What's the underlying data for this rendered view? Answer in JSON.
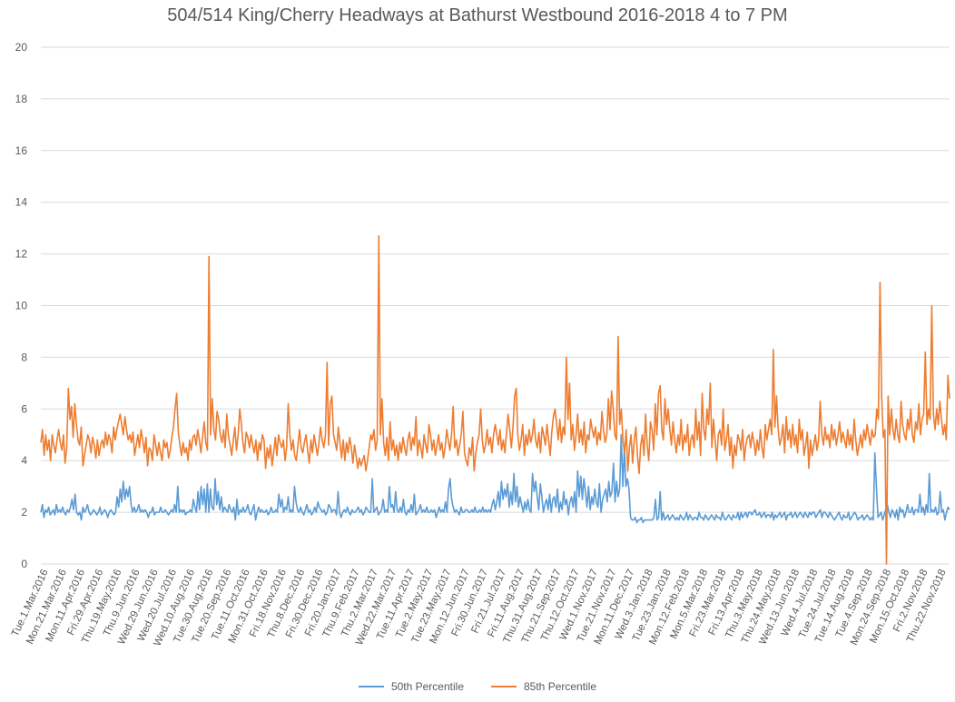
{
  "chart_data": {
    "type": "line",
    "title": "504/514 King/Cherry Headways at Bathurst Westbound 2016-2018 4 to 7 PM",
    "xlabel": "",
    "ylabel": "",
    "ylim": [
      0,
      20
    ],
    "yticks": [
      0,
      2,
      4,
      6,
      8,
      10,
      12,
      14,
      16,
      18,
      20
    ],
    "grid": true,
    "legend_position": "bottom",
    "x_start": "Tue.1.Mar.2016",
    "x_end": "Fri.30.Nov.2018",
    "x_tick_labels": [
      "Tue.1.Mar.2016",
      "Mon.21.Mar.2016",
      "Mon.11.Apr.2016",
      "Fri.29.Apr.2016",
      "Thu.19.May.2016",
      "Thu.9.Jun.2016",
      "Wed.29.Jun.2016",
      "Wed.20.Jul.2016",
      "Wed.10.Aug.2016",
      "Tue.30.Aug.2016",
      "Tue.20.Sep.2016",
      "Tue.11.Oct.2016",
      "Mon.31.Oct.2016",
      "Fri.18.Nov.2016",
      "Thu.8.Dec.2016",
      "Fri.30.Dec.2016",
      "Fri.20.Jan.2017",
      "Thu.9.Feb.2017",
      "Thu.2.Mar.2017",
      "Wed.22.Mar.2017",
      "Tue.11.Apr.2017",
      "Tue.2.May.2017",
      "Tue.23.May.2017",
      "Mon.12.Jun.2017",
      "Fri.30.Jun.2017",
      "Fri.21.Jul.2017",
      "Fri.11.Aug.2017",
      "Thu.31.Aug.2017",
      "Thu.21.Sep.2017",
      "Thu.12.Oct.2017",
      "Wed.1.Nov.2017",
      "Tue.21.Nov.2017",
      "Mon.11.Dec.2017",
      "Wed.3.Jan.2018",
      "Tue.23.Jan.2018",
      "Mon.12.Feb.2018",
      "Mon.5.Mar.2018",
      "Fri.23.Mar.2018",
      "Fri.13.Apr.2018",
      "Thu.3.May.2018",
      "Thu.24.May.2018",
      "Wed.13.Jun.2018",
      "Wed.4.Jul.2018",
      "Tue.24.Jul.2018",
      "Tue.14.Aug.2018",
      "Tue.4.Sep.2018",
      "Mon.24.Sep.2018",
      "Mon.15.Oct.2018",
      "Fri.2.Nov.2018",
      "Thu.22.Nov.2018"
    ],
    "series": [
      {
        "name": "50th Percentile",
        "color": "#5b9bd5",
        "values": [
          2.0,
          2.3,
          1.8,
          2.1,
          2.0,
          2.2,
          1.9,
          2.0,
          2.1,
          1.9,
          2.3,
          2.0,
          2.1,
          2.0,
          2.2,
          2.0,
          1.9,
          2.1,
          2.0,
          2.2,
          2.5,
          2.1,
          2.7,
          2.0,
          1.9,
          2.0,
          1.7,
          2.2,
          2.0,
          2.1,
          2.3,
          2.0,
          1.9,
          2.0,
          2.1,
          2.0,
          1.9,
          2.0,
          2.2,
          1.9,
          2.0,
          2.1,
          2.0,
          1.8,
          2.0,
          2.1,
          2.0,
          1.9,
          2.0,
          2.6,
          2.2,
          2.9,
          2.4,
          3.2,
          2.5,
          2.9,
          2.6,
          3.0,
          2.3,
          2.0,
          2.2,
          2.0,
          2.1,
          2.3,
          2.0,
          2.1,
          2.0,
          2.1,
          2.0,
          1.8,
          2.0,
          2.0,
          2.2,
          1.9,
          2.0,
          2.0,
          2.0,
          2.2,
          2.0,
          2.0,
          2.1,
          2.0,
          1.9,
          2.0,
          2.1,
          2.0,
          2.3,
          2.0,
          3.0,
          2.0,
          2.1,
          2.0,
          2.1,
          1.9,
          2.0,
          2.0,
          2.1,
          2.0,
          2.5,
          2.2,
          2.0,
          2.8,
          2.1,
          3.0,
          2.3,
          2.9,
          2.0,
          3.1,
          2.0,
          2.9,
          2.2,
          2.1,
          3.3,
          2.3,
          2.8,
          2.1,
          2.6,
          2.0,
          2.2,
          2.1,
          2.0,
          2.3,
          2.1,
          2.0,
          2.2,
          1.7,
          2.5,
          1.9,
          2.1,
          2.0,
          2.2,
          2.0,
          2.1,
          2.3,
          2.0,
          1.9,
          2.1,
          2.3,
          1.7,
          2.0,
          2.2,
          2.0,
          2.1,
          2.0,
          2.0,
          2.1,
          1.9,
          2.0,
          2.2,
          2.0,
          2.0,
          2.1,
          2.0,
          2.7,
          2.2,
          2.5,
          2.0,
          2.2,
          2.1,
          2.6,
          2.0,
          2.1,
          2.0,
          3.0,
          2.4,
          2.1,
          2.0,
          2.2,
          2.0,
          1.9,
          2.1,
          2.3,
          2.0,
          2.1,
          1.9,
          2.0,
          2.2,
          2.0,
          2.4,
          2.2,
          2.1,
          2.0,
          2.1,
          1.9,
          2.0,
          2.3,
          2.2,
          2.0,
          2.1,
          2.1,
          1.9,
          2.8,
          2.0,
          1.8,
          2.0,
          2.1,
          2.0,
          2.2,
          2.0,
          1.9,
          2.1,
          2.0,
          2.0,
          2.1,
          2.2,
          2.0,
          2.1,
          1.9,
          2.0,
          2.2,
          2.1,
          2.0,
          2.0,
          3.3,
          2.0,
          2.1,
          2.2,
          1.9,
          2.0,
          2.1,
          2.5,
          2.0,
          2.1,
          2.0,
          3.0,
          2.2,
          2.3,
          2.0,
          2.8,
          2.1,
          2.0,
          2.2,
          2.0,
          2.5,
          2.0,
          1.9,
          2.1,
          2.0,
          2.3,
          2.0,
          2.7,
          1.9,
          2.0,
          2.1,
          2.3,
          2.0,
          2.1,
          2.0,
          2.2,
          2.0,
          2.0,
          2.1,
          2.0,
          2.1,
          1.8,
          2.0,
          2.2,
          2.0,
          2.1,
          2.0,
          2.4,
          2.0,
          2.9,
          3.3,
          2.5,
          2.2,
          2.0,
          2.1,
          2.0,
          1.9,
          2.2,
          2.0,
          2.0,
          2.1,
          2.1,
          2.0,
          2.0,
          2.1,
          2.0,
          2.2,
          2.0,
          2.0,
          2.1,
          2.0,
          2.2,
          2.0,
          2.1,
          2.0,
          2.1,
          2.0,
          2.3,
          2.5,
          2.1,
          2.4,
          2.8,
          2.2,
          3.2,
          2.5,
          2.9,
          2.6,
          3.1,
          2.2,
          2.8,
          2.3,
          3.5,
          2.4,
          3.0,
          2.2,
          2.6,
          2.3,
          2.0,
          2.4,
          2.1,
          2.5,
          2.1,
          2.0,
          3.5,
          2.8,
          3.2,
          2.6,
          2.1,
          3.1,
          2.6,
          2.0,
          2.3,
          2.5,
          2.1,
          2.7,
          2.0,
          2.5,
          2.6,
          2.2,
          2.9,
          2.0,
          2.4,
          2.1,
          2.8,
          2.3,
          2.5,
          1.9,
          2.4,
          2.6,
          2.2,
          2.8,
          2.0,
          3.6,
          2.6,
          3.4,
          2.5,
          3.3,
          2.8,
          2.2,
          3.0,
          2.1,
          2.6,
          2.3,
          2.9,
          2.4,
          2.2,
          3.1,
          2.0,
          2.5,
          2.7,
          2.9,
          2.4,
          3.2,
          2.6,
          2.8,
          3.9,
          2.4,
          3.2,
          2.6,
          2.9,
          5.0,
          3.0,
          4.5,
          3.0,
          3.3,
          2.9,
          1.8,
          1.7,
          1.7,
          1.8,
          1.6,
          1.7,
          1.7,
          1.8,
          1.6,
          1.7,
          1.7,
          1.7,
          1.7,
          1.7,
          1.7,
          1.8,
          2.5,
          1.7,
          1.8,
          2.8,
          1.7,
          2.0,
          1.7,
          1.8,
          1.9,
          1.7,
          1.8,
          1.9,
          1.8,
          1.7,
          1.8,
          1.7,
          1.9,
          1.8,
          1.7,
          1.8,
          2.0,
          1.7,
          1.9,
          1.8,
          1.7,
          1.8,
          1.8,
          1.7,
          2.0,
          1.8,
          1.8,
          1.7,
          1.9,
          1.8,
          1.7,
          1.8,
          1.9,
          1.8,
          1.7,
          1.9,
          1.8,
          1.8,
          1.7,
          2.0,
          1.8,
          1.7,
          1.8,
          1.9,
          1.8,
          1.7,
          1.9,
          1.8,
          1.8,
          2.0,
          1.7,
          2.0,
          1.8,
          1.9,
          2.0,
          1.8,
          2.0,
          2.0,
          1.9,
          2.0,
          2.1,
          1.9,
          1.9,
          2.0,
          1.8,
          1.9,
          2.0,
          1.8,
          1.9,
          1.9,
          1.8,
          2.0,
          1.7,
          1.9,
          1.8,
          1.9,
          2.0,
          1.8,
          1.9,
          2.0,
          1.7,
          1.9,
          1.9,
          2.0,
          1.8,
          1.9,
          2.0,
          1.8,
          1.9,
          2.0,
          1.9,
          1.8,
          2.0,
          1.9,
          1.8,
          2.0,
          1.9,
          2.0,
          2.0,
          1.8,
          1.9,
          2.0,
          2.1,
          1.8,
          2.0,
          2.0,
          1.9,
          1.8,
          2.0,
          1.9,
          1.8,
          1.7,
          1.8,
          1.9,
          2.0,
          1.8,
          1.7,
          1.9,
          1.8,
          1.8,
          2.0,
          1.7,
          1.8,
          1.9,
          2.0,
          1.9,
          1.7,
          1.8,
          1.8,
          1.9,
          1.7,
          1.8,
          1.9,
          1.8,
          1.7,
          1.8,
          1.7,
          4.3,
          3.0,
          1.8,
          1.9,
          2.0,
          1.7,
          1.9,
          2.1,
          2.3,
          2.0,
          1.8,
          2.1,
          2.0,
          1.8,
          2.1,
          1.7,
          2.2,
          2.0,
          2.1,
          1.8,
          2.0,
          2.3,
          2.0,
          2.0,
          2.2,
          1.9,
          2.1,
          2.1,
          2.0,
          2.7,
          2.0,
          2.2,
          1.9,
          2.3,
          2.0,
          3.5,
          2.0,
          2.1,
          2.0,
          2.2,
          1.9,
          2.0,
          2.8,
          2.0,
          2.1,
          1.7,
          2.0,
          2.2,
          2.1
        ]
      },
      {
        "name": "85th Percentile",
        "color": "#ed7d31",
        "values": [
          4.7,
          5.2,
          4.2,
          5.0,
          4.4,
          4.8,
          4.0,
          5.0,
          4.6,
          4.3,
          4.8,
          5.2,
          4.7,
          4.4,
          5.0,
          3.9,
          4.5,
          6.8,
          5.6,
          6.1,
          4.9,
          6.2,
          5.4,
          4.8,
          4.6,
          5.3,
          3.8,
          4.2,
          4.6,
          5.0,
          4.8,
          4.3,
          4.9,
          4.6,
          4.1,
          4.8,
          4.2,
          4.6,
          4.8,
          4.5,
          5.1,
          4.6,
          5.0,
          4.8,
          4.3,
          5.3,
          4.8,
          5.2,
          5.5,
          5.8,
          5.4,
          5.0,
          5.7,
          5.2,
          4.8,
          5.0,
          4.7,
          5.1,
          4.2,
          4.6,
          5.0,
          4.5,
          5.2,
          4.8,
          4.3,
          4.9,
          3.8,
          4.5,
          4.4,
          4.0,
          5.0,
          4.6,
          4.2,
          4.7,
          4.3,
          4.0,
          4.8,
          4.5,
          4.7,
          4.1,
          4.4,
          4.9,
          5.3,
          6.0,
          6.6,
          5.1,
          4.6,
          4.2,
          4.7,
          4.3,
          4.5,
          4.0,
          4.8,
          4.4,
          4.9,
          5.0,
          4.6,
          5.2,
          4.8,
          4.3,
          4.9,
          5.5,
          4.7,
          4.4,
          11.9,
          5.0,
          6.4,
          5.2,
          4.8,
          5.9,
          5.6,
          5.0,
          4.7,
          5.2,
          4.5,
          5.8,
          5.0,
          4.6,
          4.2,
          4.8,
          5.3,
          4.4,
          5.0,
          6.0,
          5.4,
          4.7,
          4.3,
          5.1,
          4.9,
          4.5,
          5.0,
          4.6,
          4.3,
          4.8,
          4.0,
          4.7,
          4.4,
          5.0,
          4.8,
          3.7,
          4.5,
          4.1,
          4.6,
          3.8,
          4.3,
          4.9,
          4.2,
          5.0,
          4.7,
          4.5,
          4.8,
          4.0,
          4.5,
          6.2,
          5.0,
          4.4,
          4.8,
          4.2,
          4.0,
          4.6,
          5.2,
          4.5,
          4.3,
          4.7,
          5.0,
          4.4,
          3.9,
          4.8,
          4.3,
          5.0,
          4.6,
          4.2,
          4.7,
          5.3,
          4.8,
          4.5,
          5.0,
          7.8,
          4.6,
          6.2,
          6.5,
          5.0,
          4.7,
          4.4,
          5.3,
          4.7,
          4.1,
          4.8,
          4.0,
          4.7,
          4.3,
          4.9,
          4.5,
          3.9,
          4.6,
          4.2,
          3.7,
          4.1,
          3.8,
          4.0,
          4.2,
          3.6,
          4.0,
          4.5,
          5.0,
          4.8,
          5.2,
          4.4,
          4.8,
          12.7,
          5.0,
          6.4,
          4.7,
          4.2,
          4.9,
          4.0,
          5.5,
          4.4,
          4.8,
          4.2,
          4.6,
          4.0,
          4.7,
          4.3,
          4.9,
          4.5,
          4.2,
          4.8,
          5.1,
          4.4,
          4.9,
          4.6,
          5.7,
          4.2,
          4.8,
          4.5,
          4.1,
          5.0,
          4.6,
          4.3,
          5.4,
          5.0,
          4.4,
          4.8,
          4.2,
          4.6,
          5.0,
          4.4,
          4.7,
          4.1,
          4.5,
          5.2,
          4.8,
          4.4,
          5.0,
          6.1,
          4.5,
          4.8,
          4.2,
          4.6,
          5.0,
          5.9,
          4.3,
          4.0,
          3.8,
          4.5,
          4.2,
          4.9,
          3.6,
          4.3,
          4.7,
          5.0,
          6.0,
          4.8,
          4.3,
          4.6,
          5.2,
          4.6,
          4.9,
          4.3,
          5.0,
          5.4,
          5.0,
          4.6,
          5.2,
          4.4,
          4.8,
          4.3,
          5.1,
          5.8,
          5.2,
          4.5,
          5.3,
          6.5,
          6.8,
          5.0,
          4.4,
          4.8,
          5.4,
          4.2,
          5.0,
          4.6,
          5.2,
          4.7,
          5.0,
          5.6,
          4.8,
          4.5,
          5.1,
          4.3,
          5.3,
          5.0,
          4.6,
          5.4,
          4.8,
          4.2,
          5.1,
          5.7,
          6.0,
          5.4,
          4.8,
          5.6,
          4.7,
          5.3,
          5.0,
          8.0,
          5.6,
          7.0,
          4.8,
          5.4,
          4.4,
          5.0,
          5.8,
          4.7,
          5.2,
          4.6,
          5.5,
          4.3,
          5.0,
          4.8,
          5.6,
          5.2,
          4.9,
          5.3,
          4.6,
          5.1,
          4.8,
          5.9,
          5.2,
          4.7,
          5.0,
          6.4,
          5.2,
          6.7,
          6.0,
          5.0,
          4.8,
          8.8,
          5.4,
          6.0,
          4.8,
          4.3,
          5.2,
          3.6,
          4.5,
          5.0,
          3.9,
          4.8,
          5.3,
          4.2,
          3.5,
          4.6,
          5.0,
          4.2,
          5.8,
          4.6,
          4.0,
          5.5,
          5.2,
          4.4,
          6.2,
          5.0,
          6.6,
          6.9,
          5.2,
          4.8,
          6.4,
          5.4,
          6.0,
          5.2,
          4.6,
          5.5,
          4.8,
          4.3,
          5.0,
          4.6,
          5.6,
          4.4,
          5.0,
          4.7,
          5.4,
          4.2,
          4.8,
          5.0,
          4.5,
          6.0,
          4.8,
          5.5,
          4.2,
          6.6,
          5.2,
          4.8,
          6.0,
          5.4,
          7.0,
          4.5,
          5.6,
          4.8,
          4.0,
          5.0,
          5.2,
          4.6,
          6.0,
          4.4,
          4.8,
          5.4,
          4.2,
          4.9,
          3.7,
          4.6,
          4.2,
          5.0,
          4.8,
          4.4,
          5.2,
          4.0,
          4.6,
          4.9,
          5.0,
          4.5,
          5.1,
          4.7,
          4.2,
          4.8,
          4.4,
          5.2,
          4.5,
          4.1,
          5.4,
          4.8,
          5.2,
          5.6,
          5.0,
          8.3,
          5.3,
          6.5,
          5.2,
          4.6,
          4.9,
          5.4,
          4.3,
          5.7,
          4.8,
          5.2,
          4.5,
          5.4,
          4.6,
          5.0,
          4.3,
          5.6,
          4.8,
          5.2,
          4.2,
          4.6,
          5.1,
          3.7,
          4.8,
          4.2,
          4.6,
          5.0,
          4.4,
          4.8,
          6.3,
          5.0,
          4.6,
          5.3,
          4.8,
          5.0,
          4.5,
          5.4,
          4.8,
          5.2,
          4.6,
          5.0,
          5.5,
          4.7,
          5.1,
          4.8,
          4.5,
          5.2,
          4.6,
          5.0,
          4.4,
          5.6,
          4.8,
          4.2,
          4.6,
          5.0,
          4.5,
          5.2,
          4.8,
          5.4,
          5.0,
          4.6,
          5.2,
          4.9,
          5.0,
          6.0,
          5.6,
          10.9,
          6.5,
          4.9,
          5.2,
          0.0,
          6.5,
          5.0,
          6.0,
          5.2,
          4.8,
          5.6,
          5.0,
          4.7,
          6.3,
          5.4,
          5.0,
          4.8,
          5.6,
          5.2,
          6.0,
          5.0,
          4.7,
          5.5,
          5.2,
          6.2,
          5.0,
          5.6,
          5.8,
          8.2,
          5.4,
          6.0,
          5.6,
          10.0,
          5.8,
          5.2,
          6.0,
          5.4,
          6.3,
          5.6,
          5.0,
          5.4,
          4.8,
          7.3,
          6.4
        ]
      }
    ]
  }
}
